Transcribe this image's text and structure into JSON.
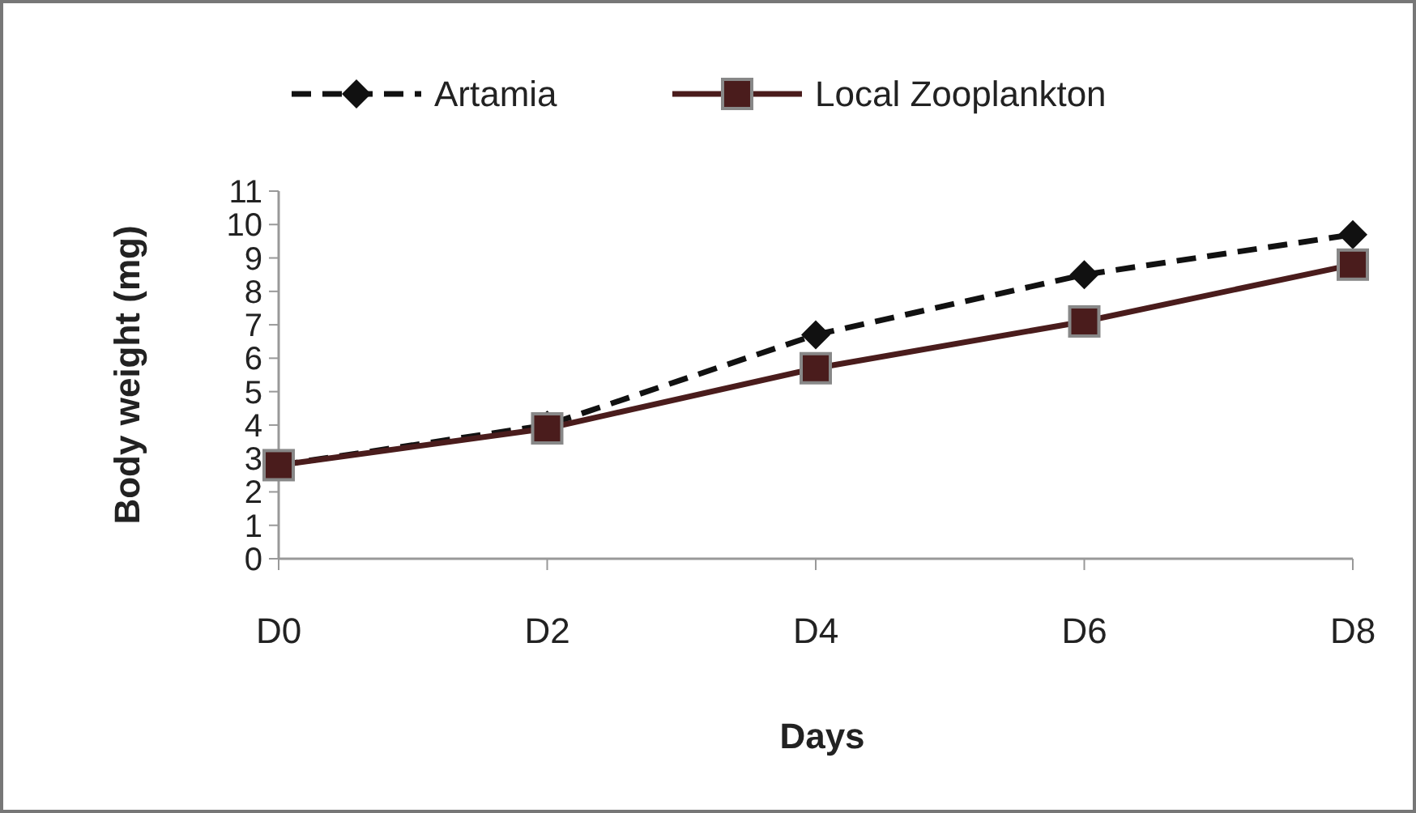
{
  "chart_data": {
    "type": "line",
    "xlabel": "Days",
    "ylabel": "Body weight (mg)",
    "categories": [
      "D0",
      "D2",
      "D4",
      "D6",
      "D8"
    ],
    "series": [
      {
        "name": "Artamia",
        "color": "#111111",
        "values": [
          2.8,
          4.0,
          6.7,
          8.5,
          9.7
        ],
        "marker": "diamond",
        "line_style": "dashed"
      },
      {
        "name": "Local Zooplankton",
        "color": "#4a1c1c",
        "values": [
          2.8,
          3.9,
          5.7,
          7.1,
          8.8
        ],
        "marker": "square",
        "line_style": "solid"
      }
    ],
    "ylim": [
      0,
      11
    ],
    "yticks": [
      0,
      1,
      2,
      3,
      4,
      5,
      6,
      7,
      8,
      9,
      10,
      11
    ],
    "grid": false,
    "legend": "top"
  }
}
